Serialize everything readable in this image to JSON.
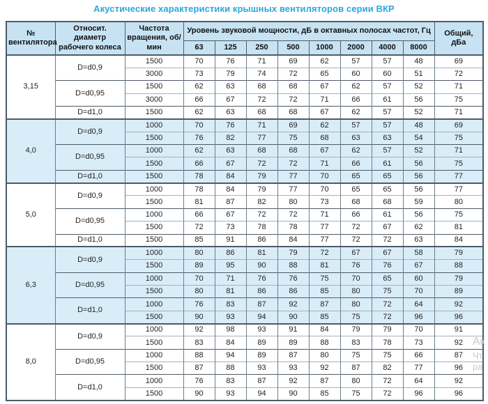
{
  "title": "Акустические характеристики крышных вентиляторов серии ВКР",
  "colors": {
    "title_accent": "#29a8df",
    "header_bg": "#c7e3f3",
    "highlight_row_bg": "#d9edf8",
    "border_dark": "#4d5a66"
  },
  "table": {
    "headers": {
      "fan_number": "№ вентилятора",
      "diameter": "Относит. диаметр рабочего колеса",
      "speed": "Частота вращения, об/мин",
      "spl_group": "Уровень звуковой мощности, дБ в октавных полосах частот, Гц",
      "frequencies": [
        "63",
        "125",
        "250",
        "500",
        "1000",
        "2000",
        "4000",
        "8000"
      ],
      "total": "Общий, дБа"
    },
    "sections": [
      {
        "fan": "3,15",
        "highlight": false,
        "subgroups": [
          {
            "diameter": "D=d0,9",
            "rows": [
              {
                "rpm": "1500",
                "levels": [
                  70,
                  76,
                  71,
                  69,
                  62,
                  57,
                  57,
                  48
                ],
                "total": 69
              },
              {
                "rpm": "3000",
                "levels": [
                  73,
                  79,
                  74,
                  72,
                  65,
                  60,
                  60,
                  51
                ],
                "total": 72
              }
            ]
          },
          {
            "diameter": "D=d0,95",
            "rows": [
              {
                "rpm": "1500",
                "levels": [
                  62,
                  63,
                  68,
                  68,
                  67,
                  62,
                  57,
                  52
                ],
                "total": 71
              },
              {
                "rpm": "3000",
                "levels": [
                  66,
                  67,
                  72,
                  72,
                  71,
                  66,
                  61,
                  56
                ],
                "total": 75
              }
            ]
          },
          {
            "diameter": "D=d1,0",
            "rows": [
              {
                "rpm": "1500",
                "levels": [
                  62,
                  63,
                  68,
                  68,
                  67,
                  62,
                  57,
                  52
                ],
                "total": 71
              }
            ]
          }
        ]
      },
      {
        "fan": "4,0",
        "highlight": true,
        "subgroups": [
          {
            "diameter": "D=d0,9",
            "rows": [
              {
                "rpm": "1000",
                "levels": [
                  70,
                  76,
                  71,
                  69,
                  62,
                  57,
                  57,
                  48
                ],
                "total": 69
              },
              {
                "rpm": "1500",
                "levels": [
                  76,
                  82,
                  77,
                  75,
                  68,
                  63,
                  63,
                  54
                ],
                "total": 75
              }
            ]
          },
          {
            "diameter": "D=d0,95",
            "rows": [
              {
                "rpm": "1000",
                "levels": [
                  62,
                  63,
                  68,
                  68,
                  67,
                  62,
                  57,
                  52
                ],
                "total": 71
              },
              {
                "rpm": "1500",
                "levels": [
                  66,
                  67,
                  72,
                  72,
                  71,
                  66,
                  61,
                  56
                ],
                "total": 75
              }
            ]
          },
          {
            "diameter": "D=d1,0",
            "rows": [
              {
                "rpm": "1500",
                "levels": [
                  78,
                  84,
                  79,
                  77,
                  70,
                  65,
                  65,
                  56
                ],
                "total": 77
              }
            ]
          }
        ]
      },
      {
        "fan": "5,0",
        "highlight": false,
        "subgroups": [
          {
            "diameter": "D=d0,9",
            "rows": [
              {
                "rpm": "1000",
                "levels": [
                  78,
                  84,
                  79,
                  77,
                  70,
                  65,
                  65,
                  56
                ],
                "total": 77
              },
              {
                "rpm": "1500",
                "levels": [
                  81,
                  87,
                  82,
                  80,
                  73,
                  68,
                  68,
                  59
                ],
                "total": 80
              }
            ]
          },
          {
            "diameter": "D=d0,95",
            "rows": [
              {
                "rpm": "1000",
                "levels": [
                  66,
                  67,
                  72,
                  72,
                  71,
                  66,
                  61,
                  56
                ],
                "total": 75
              },
              {
                "rpm": "1500",
                "levels": [
                  72,
                  73,
                  78,
                  78,
                  77,
                  72,
                  67,
                  62
                ],
                "total": 81
              }
            ]
          },
          {
            "diameter": "D=d1,0",
            "rows": [
              {
                "rpm": "1500",
                "levels": [
                  85,
                  91,
                  86,
                  84,
                  77,
                  72,
                  72,
                  63
                ],
                "total": 84
              }
            ]
          }
        ]
      },
      {
        "fan": "6,3",
        "highlight": true,
        "subgroups": [
          {
            "diameter": "D=d0,9",
            "rows": [
              {
                "rpm": "1000",
                "levels": [
                  80,
                  86,
                  81,
                  79,
                  72,
                  67,
                  67,
                  58
                ],
                "total": 79
              },
              {
                "rpm": "1500",
                "levels": [
                  89,
                  95,
                  90,
                  88,
                  81,
                  76,
                  76,
                  67
                ],
                "total": 88
              }
            ]
          },
          {
            "diameter": "D=d0,95",
            "rows": [
              {
                "rpm": "1000",
                "levels": [
                  70,
                  71,
                  76,
                  76,
                  75,
                  70,
                  65,
                  60
                ],
                "total": 79
              },
              {
                "rpm": "1500",
                "levels": [
                  80,
                  81,
                  86,
                  86,
                  85,
                  80,
                  75,
                  70
                ],
                "total": 89
              }
            ]
          },
          {
            "diameter": "D=d1,0",
            "rows": [
              {
                "rpm": "1000",
                "levels": [
                  76,
                  83,
                  87,
                  92,
                  87,
                  80,
                  72,
                  64
                ],
                "total": 92
              },
              {
                "rpm": "1500",
                "levels": [
                  90,
                  93,
                  94,
                  90,
                  85,
                  75,
                  72,
                  96
                ],
                "total": 96
              }
            ]
          }
        ]
      },
      {
        "fan": "8,0",
        "highlight": false,
        "subgroups": [
          {
            "diameter": "D=d0,9",
            "rows": [
              {
                "rpm": "1000",
                "levels": [
                  92,
                  98,
                  93,
                  91,
                  84,
                  79,
                  79,
                  70
                ],
                "total": 91
              },
              {
                "rpm": "1500",
                "levels": [
                  83,
                  84,
                  89,
                  89,
                  88,
                  83,
                  78,
                  73
                ],
                "total": 92
              }
            ]
          },
          {
            "diameter": "D=d0,95",
            "rows": [
              {
                "rpm": "1000",
                "levels": [
                  88,
                  94,
                  89,
                  87,
                  80,
                  75,
                  75,
                  66
                ],
                "total": 87
              },
              {
                "rpm": "1500",
                "levels": [
                  87,
                  88,
                  93,
                  93,
                  92,
                  87,
                  82,
                  77
                ],
                "total": 96
              }
            ]
          },
          {
            "diameter": "D=d1,0",
            "rows": [
              {
                "rpm": "1000",
                "levels": [
                  76,
                  83,
                  87,
                  92,
                  87,
                  80,
                  72,
                  64
                ],
                "total": 92
              },
              {
                "rpm": "1500",
                "levels": [
                  90,
                  93,
                  94,
                  90,
                  85,
                  75,
                  72,
                  96
                ],
                "total": 96
              }
            ]
          }
        ]
      }
    ]
  },
  "watermark": {
    "lines": [
      "Ак",
      "Чт",
      "ра"
    ]
  }
}
